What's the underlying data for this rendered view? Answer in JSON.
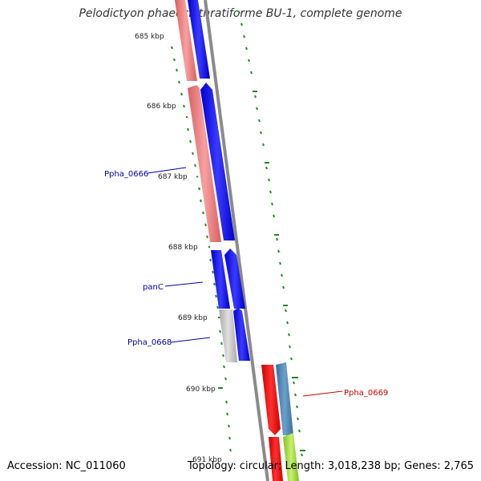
{
  "title": "Pelodictyon phaeoclathratiforme BU-1, complete genome",
  "footer": {
    "accession": "Accession: NC_011060",
    "summary": "Topology: circular; Length: 3,018,238 bp; Genes: 2,765"
  },
  "ticks": [
    "685 kbp",
    "686 kbp",
    "687 kbp",
    "688 kbp",
    "689 kbp",
    "690 kbp",
    "691 kbp"
  ],
  "gene_labels": [
    {
      "name": "Ppha_0666",
      "color": "#0000aa"
    },
    {
      "name": "panC",
      "color": "#0000aa"
    },
    {
      "name": "Ppha_0668",
      "color": "#0000aa"
    },
    {
      "name": "Ppha_0669",
      "color": "#cc0000"
    }
  ],
  "colors": {
    "forward_cds": "#0000ff",
    "reverse_cds": "#ee7777",
    "gray_feature": "#c8c8c8",
    "red_feature": "#ff0000",
    "steelblue_feature": "#4682b4",
    "lime_feature": "#a0e040",
    "backbone": "#8a8a8a",
    "tick_marks": "#228b22"
  }
}
